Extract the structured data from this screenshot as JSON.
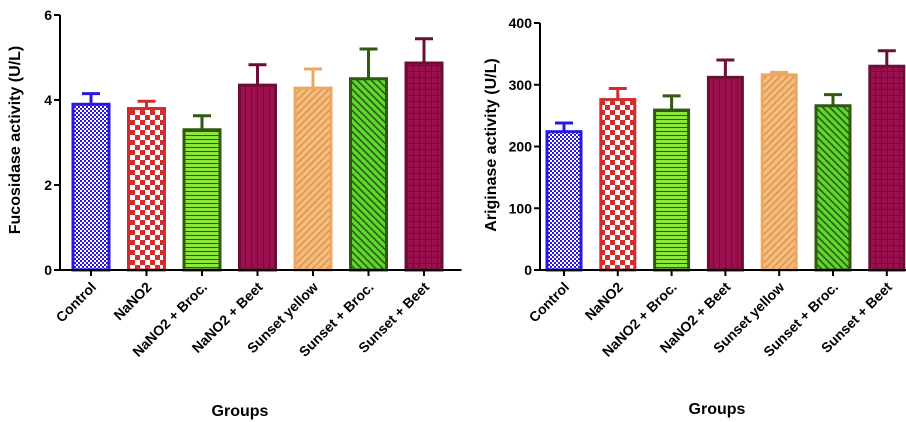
{
  "chart_data": [
    {
      "type": "bar",
      "xlabel": "Groups",
      "ylabel": "Fucosidase activity (U/L)",
      "ylim": [
        0,
        6
      ],
      "yticks": [
        "0",
        "2",
        "4",
        "6"
      ],
      "grid": false,
      "error_bars": true,
      "categories": [
        "Control",
        "NaNO2",
        "NaNO2 + Broc.",
        "NaNO2 + Beet",
        "Sunset yellow",
        "Sunset + Broc.",
        "Sunset + Beet"
      ],
      "values": [
        3.9,
        3.8,
        3.3,
        4.35,
        4.28,
        4.5,
        4.87
      ],
      "errors": [
        0.25,
        0.17,
        0.33,
        0.48,
        0.45,
        0.7,
        0.57
      ],
      "colors": [
        "#2b17e3",
        "#d42b2b",
        "#7ae02a",
        "#9b1150",
        "#eba862",
        "#4fd12a",
        "#9b1150"
      ],
      "borders": [
        "#2b17e3",
        "#d42b2b",
        "#2e5a12",
        "#6b0f37",
        "#eba862",
        "#2e5a12",
        "#6b0f37"
      ]
    },
    {
      "type": "bar",
      "xlabel": "Groups",
      "ylabel": "Ariginase activity (U/L)",
      "ylim": [
        0,
        400
      ],
      "yticks": [
        "0",
        "100",
        "200",
        "300",
        "400"
      ],
      "grid": false,
      "error_bars": true,
      "categories": [
        "Control",
        "NaNO2",
        "NaNO2 + Broc.",
        "NaNO2 + Beet",
        "Sunset yellow",
        "Sunset + Broc.",
        "Sunset + Beet"
      ],
      "values": [
        224,
        276,
        259,
        312,
        316,
        266,
        330
      ],
      "errors": [
        14,
        18,
        23,
        28,
        4,
        18,
        25
      ],
      "colors": [
        "#2b17e3",
        "#d42b2b",
        "#7ae02a",
        "#9b1150",
        "#eba862",
        "#4fd12a",
        "#9b1150"
      ],
      "borders": [
        "#2b17e3",
        "#d42b2b",
        "#2e5a12",
        "#6b0f37",
        "#eba862",
        "#2e5a12",
        "#6b0f37"
      ]
    }
  ]
}
